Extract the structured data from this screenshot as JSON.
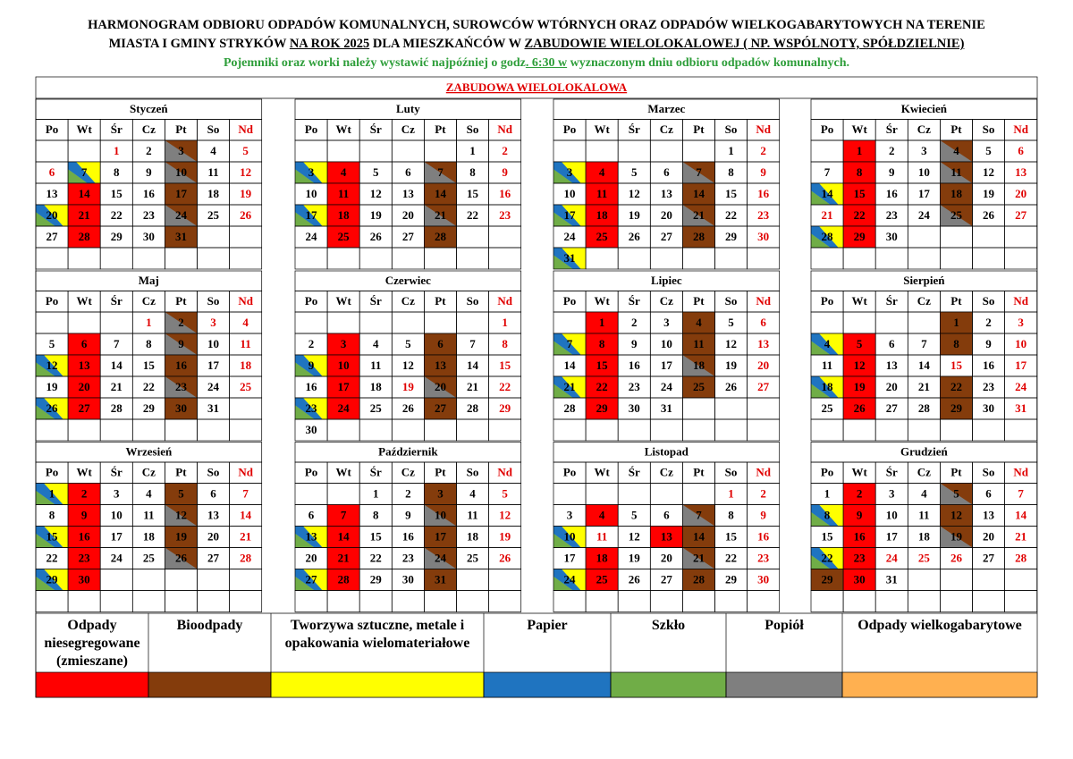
{
  "header": {
    "line1": [
      {
        "text": "HARMONOGRAM ODBIORU ODPADÓW KOMUNALNYCH, SUROWCÓW WTÓRNYCH ORAZ ODPADÓW WIELKOGABARYTOWYCH NA TERENIE",
        "underline": false
      }
    ],
    "line2": [
      {
        "text": "MIASTA I GMINY STRYKÓW ",
        "underline": false
      },
      {
        "text": "NA ROK 2025",
        "underline": true
      },
      {
        "text": " DLA MIESZKAŃCÓW W ",
        "underline": false
      },
      {
        "text": "ZABUDOWIE WIELOLOKALOWEJ ( NP. WSPÓLNOTY, SPÓŁDZIELNIE)",
        "underline": true
      }
    ],
    "note": [
      {
        "text": "Pojemniki oraz worki należy wystawić najpóźniej o godz",
        "underline": false
      },
      {
        "text": ". 6:30 w",
        "underline": true
      },
      {
        "text": " wyznaczonym dniu odbioru odpadów komunalnych.",
        "underline": false
      }
    ],
    "note_color": "#2e9e3a"
  },
  "section": {
    "title": "ZABUDOWA WIELOLOKALOWA",
    "color": "#e00000"
  },
  "weekdays": [
    "Po",
    "Wt",
    "Śr",
    "Cz",
    "Pt",
    "So",
    "Nd"
  ],
  "months": [
    {
      "name": "Styczeń",
      "weeks": [
        [
          null,
          null,
          "1",
          "2",
          "3",
          "4",
          "5"
        ],
        [
          "6",
          "7",
          "8",
          "9",
          "10",
          "11",
          "12"
        ],
        [
          "13",
          "14",
          "15",
          "16",
          "17",
          "18",
          "19"
        ],
        [
          "20",
          "21",
          "22",
          "23",
          "24",
          "25",
          "26"
        ],
        [
          "27",
          "28",
          "29",
          "30",
          "31",
          null,
          null
        ]
      ],
      "mixed_waste": [
        "14",
        "21",
        "28"
      ],
      "bio": [
        "17",
        "31"
      ],
      "bio_ash": [
        "3",
        "10",
        "24"
      ],
      "recyclables": [
        "7",
        "20"
      ],
      "holidays": [
        "1",
        "6"
      ]
    },
    {
      "name": "Luty",
      "weeks": [
        [
          null,
          null,
          null,
          null,
          null,
          "1",
          "2"
        ],
        [
          "3",
          "4",
          "5",
          "6",
          "7",
          "8",
          "9"
        ],
        [
          "10",
          "11",
          "12",
          "13",
          "14",
          "15",
          "16"
        ],
        [
          "17",
          "18",
          "19",
          "20",
          "21",
          "22",
          "23"
        ],
        [
          "24",
          "25",
          "26",
          "27",
          "28",
          null,
          null
        ]
      ],
      "mixed_waste": [
        "4",
        "11",
        "18",
        "25"
      ],
      "bio": [
        "14",
        "28"
      ],
      "bio_ash": [
        "7",
        "21"
      ],
      "recyclables": [
        "3",
        "17"
      ],
      "holidays": []
    },
    {
      "name": "Marzec",
      "weeks": [
        [
          null,
          null,
          null,
          null,
          null,
          "1",
          "2"
        ],
        [
          "3",
          "4",
          "5",
          "6",
          "7",
          "8",
          "9"
        ],
        [
          "10",
          "11",
          "12",
          "13",
          "14",
          "15",
          "16"
        ],
        [
          "17",
          "18",
          "19",
          "20",
          "21",
          "22",
          "23"
        ],
        [
          "24",
          "25",
          "26",
          "27",
          "28",
          "29",
          "30"
        ],
        [
          "31",
          null,
          null,
          null,
          null,
          null,
          null
        ]
      ],
      "mixed_waste": [
        "4",
        "11",
        "18",
        "25"
      ],
      "bio": [
        "14",
        "28"
      ],
      "bio_ash": [
        "7",
        "21"
      ],
      "recyclables": [
        "3",
        "17",
        "31"
      ],
      "holidays": []
    },
    {
      "name": "Kwiecień",
      "weeks": [
        [
          null,
          "1",
          "2",
          "3",
          "4",
          "5",
          "6"
        ],
        [
          "7",
          "8",
          "9",
          "10",
          "11",
          "12",
          "13"
        ],
        [
          "14",
          "15",
          "16",
          "17",
          "18",
          "19",
          "20"
        ],
        [
          "21",
          "22",
          "23",
          "24",
          "25",
          "26",
          "27"
        ],
        [
          "28",
          "29",
          "30",
          null,
          null,
          null,
          null
        ]
      ],
      "mixed_waste": [
        "1",
        "8",
        "15",
        "22",
        "29"
      ],
      "bio": [
        "18"
      ],
      "bio_ash": [
        "4",
        "11",
        "25"
      ],
      "recyclables": [
        "14",
        "28"
      ],
      "holidays": [
        "21"
      ]
    },
    {
      "name": "Maj",
      "weeks": [
        [
          null,
          null,
          null,
          "1",
          "2",
          "3",
          "4"
        ],
        [
          "5",
          "6",
          "7",
          "8",
          "9",
          "10",
          "11"
        ],
        [
          "12",
          "13",
          "14",
          "15",
          "16",
          "17",
          "18"
        ],
        [
          "19",
          "20",
          "21",
          "22",
          "23",
          "24",
          "25"
        ],
        [
          "26",
          "27",
          "28",
          "29",
          "30",
          "31",
          null
        ]
      ],
      "mixed_waste": [
        "6",
        "13",
        "20",
        "27"
      ],
      "bio": [
        "16",
        "30"
      ],
      "bio_ash": [
        "2",
        "9",
        "23"
      ],
      "recyclables": [
        "12",
        "26"
      ],
      "holidays": [
        "1",
        "3"
      ]
    },
    {
      "name": "Czerwiec",
      "weeks": [
        [
          null,
          null,
          null,
          null,
          null,
          null,
          "1"
        ],
        [
          "2",
          "3",
          "4",
          "5",
          "6",
          "7",
          "8"
        ],
        [
          "9",
          "10",
          "11",
          "12",
          "13",
          "14",
          "15"
        ],
        [
          "16",
          "17",
          "18",
          "19",
          "20",
          "21",
          "22"
        ],
        [
          "23",
          "24",
          "25",
          "26",
          "27",
          "28",
          "29"
        ],
        [
          "30",
          null,
          null,
          null,
          null,
          null,
          null
        ]
      ],
      "mixed_waste": [
        "3",
        "10",
        "17",
        "24"
      ],
      "bio": [
        "6",
        "13",
        "27"
      ],
      "bio_ash": [
        "20"
      ],
      "recyclables": [
        "9",
        "23"
      ],
      "holidays": [
        "19"
      ]
    },
    {
      "name": "Lipiec",
      "weeks": [
        [
          null,
          "1",
          "2",
          "3",
          "4",
          "5",
          "6"
        ],
        [
          "7",
          "8",
          "9",
          "10",
          "11",
          "12",
          "13"
        ],
        [
          "14",
          "15",
          "16",
          "17",
          "18",
          "19",
          "20"
        ],
        [
          "21",
          "22",
          "23",
          "24",
          "25",
          "26",
          "27"
        ],
        [
          "28",
          "29",
          "30",
          "31",
          null,
          null,
          null
        ]
      ],
      "mixed_waste": [
        "1",
        "8",
        "15",
        "22",
        "29"
      ],
      "bio": [
        "4",
        "11",
        "25"
      ],
      "bio_ash": [
        "18"
      ],
      "recyclables": [
        "7",
        "21"
      ],
      "holidays": []
    },
    {
      "name": "Sierpień",
      "weeks": [
        [
          null,
          null,
          null,
          null,
          "1",
          "2",
          "3"
        ],
        [
          "4",
          "5",
          "6",
          "7",
          "8",
          "9",
          "10"
        ],
        [
          "11",
          "12",
          "13",
          "14",
          "15",
          "16",
          "17"
        ],
        [
          "18",
          "19",
          "20",
          "21",
          "22",
          "23",
          "24"
        ],
        [
          "25",
          "26",
          "27",
          "28",
          "29",
          "30",
          "31"
        ]
      ],
      "mixed_waste": [
        "5",
        "12",
        "19",
        "26"
      ],
      "bio": [
        "1",
        "8",
        "22",
        "29"
      ],
      "bio_ash": [],
      "recyclables": [
        "4",
        "18"
      ],
      "holidays": [
        "15"
      ]
    },
    {
      "name": "Wrzesień",
      "weeks": [
        [
          "1",
          "2",
          "3",
          "4",
          "5",
          "6",
          "7"
        ],
        [
          "8",
          "9",
          "10",
          "11",
          "12",
          "13",
          "14"
        ],
        [
          "15",
          "16",
          "17",
          "18",
          "19",
          "20",
          "21"
        ],
        [
          "22",
          "23",
          "24",
          "25",
          "26",
          "27",
          "28"
        ],
        [
          "29",
          "30",
          null,
          null,
          null,
          null,
          null
        ]
      ],
      "mixed_waste": [
        "2",
        "9",
        "16",
        "23",
        "30"
      ],
      "bio": [
        "5",
        "19"
      ],
      "bio_ash": [
        "12",
        "26"
      ],
      "recyclables": [
        "1",
        "15",
        "29"
      ],
      "holidays": []
    },
    {
      "name": "Październik",
      "weeks": [
        [
          null,
          null,
          "1",
          "2",
          "3",
          "4",
          "5"
        ],
        [
          "6",
          "7",
          "8",
          "9",
          "10",
          "11",
          "12"
        ],
        [
          "13",
          "14",
          "15",
          "16",
          "17",
          "18",
          "19"
        ],
        [
          "20",
          "21",
          "22",
          "23",
          "24",
          "25",
          "26"
        ],
        [
          "27",
          "28",
          "29",
          "30",
          "31",
          null,
          null
        ]
      ],
      "mixed_waste": [
        "7",
        "14",
        "21",
        "28"
      ],
      "bio": [
        "3",
        "17",
        "31"
      ],
      "bio_ash": [
        "10",
        "24"
      ],
      "recyclables": [
        "13",
        "27"
      ],
      "holidays": []
    },
    {
      "name": "Listopad",
      "weeks": [
        [
          null,
          null,
          null,
          null,
          null,
          "1",
          "2"
        ],
        [
          "3",
          "4",
          "5",
          "6",
          "7",
          "8",
          "9"
        ],
        [
          "10",
          "11",
          "12",
          "13",
          "14",
          "15",
          "16"
        ],
        [
          "17",
          "18",
          "19",
          "20",
          "21",
          "22",
          "23"
        ],
        [
          "24",
          "25",
          "26",
          "27",
          "28",
          "29",
          "30"
        ]
      ],
      "mixed_waste": [
        "4",
        "13",
        "18",
        "25"
      ],
      "bio": [
        "14",
        "28"
      ],
      "bio_ash": [
        "7",
        "21"
      ],
      "recyclables": [
        "10",
        "24"
      ],
      "holidays": [
        "1",
        "11"
      ]
    },
    {
      "name": "Grudzień",
      "weeks": [
        [
          "1",
          "2",
          "3",
          "4",
          "5",
          "6",
          "7"
        ],
        [
          "8",
          "9",
          "10",
          "11",
          "12",
          "13",
          "14"
        ],
        [
          "15",
          "16",
          "17",
          "18",
          "19",
          "20",
          "21"
        ],
        [
          "22",
          "23",
          "24",
          "25",
          "26",
          "27",
          "28"
        ],
        [
          "29",
          "30",
          "31",
          null,
          null,
          null,
          null
        ]
      ],
      "mixed_waste": [
        "2",
        "9",
        "16",
        "23",
        "30"
      ],
      "bio": [
        "12",
        "29"
      ],
      "bio_ash": [
        "5",
        "19"
      ],
      "recyclables": [
        "8",
        "22"
      ],
      "holidays": [
        "24",
        "25",
        "26"
      ]
    }
  ],
  "legend": {
    "items": [
      {
        "label": "Odpady niesegregowane (zmieszane)",
        "color": "#ff0000"
      },
      {
        "label": "Bioodpady",
        "color": "#843c0c"
      },
      {
        "label": "Tworzywa sztuczne, metale i opakowania wielomateriałowe",
        "color": "#ffff00"
      },
      {
        "label": "Papier",
        "color": "#1f74c0"
      },
      {
        "label": "Szkło",
        "color": "#70ad47"
      },
      {
        "label": "Popiół",
        "color": "#7f7f7f"
      },
      {
        "label": "Odpady wielkogabarytowe",
        "color": "#ffb050"
      }
    ]
  },
  "holiday_text_color": "#e00000"
}
